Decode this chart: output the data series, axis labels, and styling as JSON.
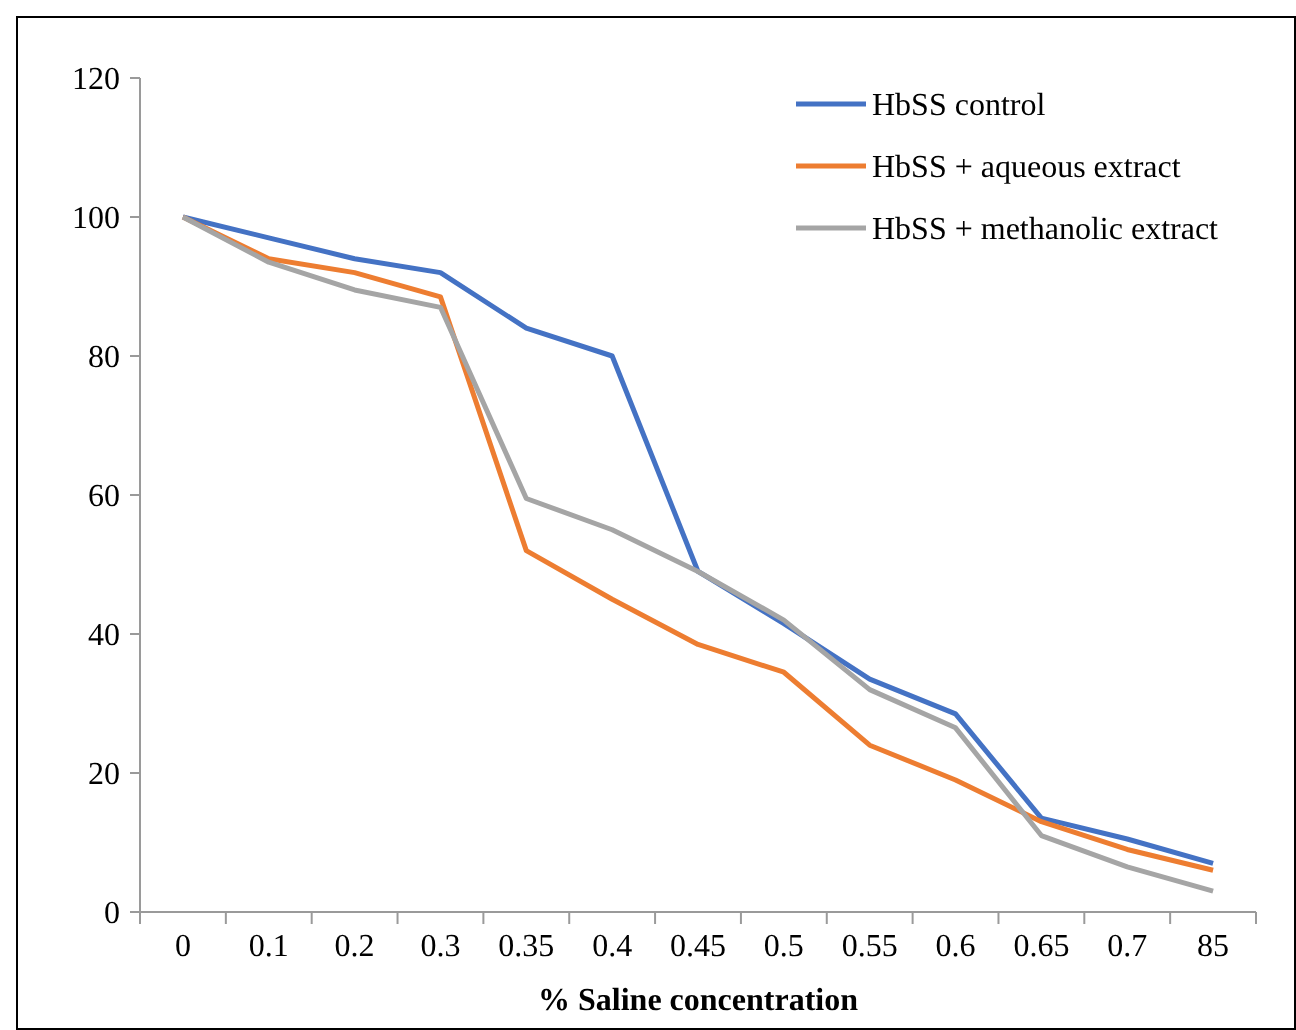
{
  "chart_data": {
    "type": "line",
    "xlabel": "% Saline concentration",
    "categories": [
      "0",
      "0.1",
      "0.2",
      "0.3",
      "0.35",
      "0.4",
      "0.45",
      "0.5",
      "0.55",
      "0.6",
      "0.65",
      "0.7",
      "85"
    ],
    "series": [
      {
        "name": "HbSS control",
        "color": "#4472c4",
        "values": [
          100,
          97,
          94,
          92,
          84,
          80,
          49,
          41.5,
          33.5,
          28.5,
          13.5,
          10.5,
          7
        ]
      },
      {
        "name": "HbSS + aqueous extract",
        "color": "#ed7d31",
        "values": [
          100,
          94,
          92,
          88.5,
          52,
          45,
          38.5,
          34.5,
          24,
          19,
          13,
          9,
          6
        ]
      },
      {
        "name": "HbSS + methanolic extract",
        "color": "#a5a5a5",
        "values": [
          100,
          93.5,
          89.5,
          87,
          59.5,
          55,
          49,
          42,
          32,
          26.5,
          11,
          6.5,
          3
        ]
      }
    ],
    "ylim": [
      0,
      120
    ],
    "yticks": [
      0,
      20,
      40,
      60,
      80,
      100,
      120
    ],
    "grid": false,
    "legend": "top right",
    "marker": "none",
    "line_style": "solid"
  }
}
